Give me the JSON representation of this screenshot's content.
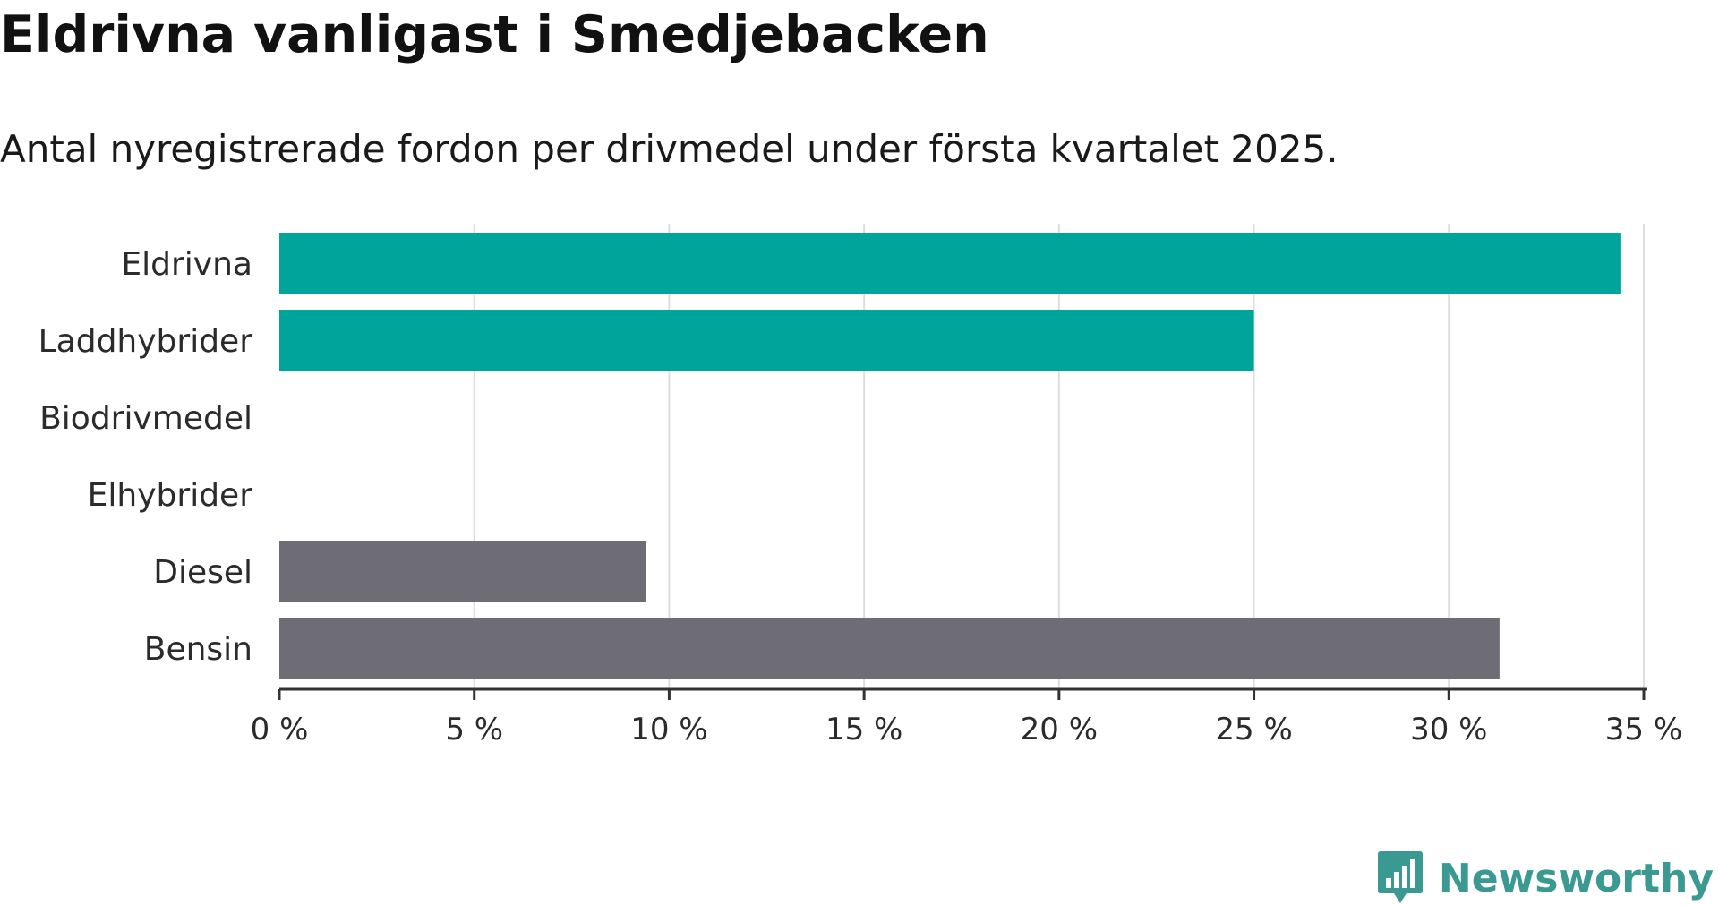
{
  "colors": {
    "accent": "#00a49a",
    "neutral": "#6e6d76",
    "grid": "#dddddd",
    "axis": "#333333",
    "brand": "#3a9a91"
  },
  "header": {
    "title": "Eldrivna vanligast i Smedjebacken",
    "subtitle": "Antal nyregistrerade fordon per drivmedel under första kvartalet 2025."
  },
  "branding": {
    "logo_text": "Newsworthy",
    "logo_icon": "bar-chart-icon"
  },
  "chart_data": {
    "type": "bar",
    "orientation": "horizontal",
    "categories": [
      "Eldrivna",
      "Laddhybrider",
      "Biodrivmedel",
      "Elhybrider",
      "Diesel",
      "Bensin"
    ],
    "values": [
      34.4,
      25.0,
      0,
      0,
      9.4,
      31.3
    ],
    "highlighted": [
      true,
      true,
      false,
      false,
      false,
      false
    ],
    "xlim": [
      0,
      35
    ],
    "xticks": [
      0,
      5,
      10,
      15,
      20,
      25,
      30,
      35
    ],
    "tick_labels": [
      "0 %",
      "5 %",
      "10 %",
      "15 %",
      "20 %",
      "25 %",
      "30 %",
      "35 %"
    ],
    "grid": true
  }
}
